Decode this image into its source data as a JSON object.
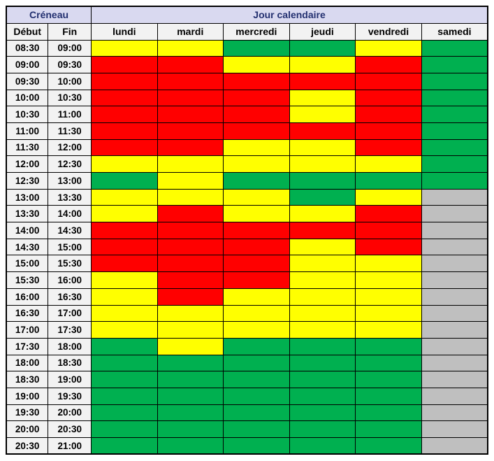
{
  "header": {
    "creneau": "Créneau",
    "jour": "Jour calendaire",
    "debut": "Début",
    "fin": "Fin",
    "days": [
      "lundi",
      "mardi",
      "mercredi",
      "jeudi",
      "vendredi",
      "samedi"
    ]
  },
  "chart_data": {
    "type": "heatmap",
    "columns": [
      "lundi",
      "mardi",
      "mercredi",
      "jeudi",
      "vendredi",
      "samedi"
    ],
    "row_header_labels": [
      "Début",
      "Fin"
    ],
    "corner_label": "Créneau",
    "column_group_label": "Jour calendaire",
    "palette": {
      "R": "#FF0000",
      "Y": "#FFFF00",
      "G": "#00B050",
      "X": "#BFBFBF"
    },
    "palette_names": {
      "R": "red",
      "Y": "yellow",
      "G": "green",
      "X": "gray"
    },
    "rows": [
      {
        "debut": "08:30",
        "fin": "09:00",
        "cells": [
          "Y",
          "Y",
          "G",
          "G",
          "Y",
          "G"
        ]
      },
      {
        "debut": "09:00",
        "fin": "09:30",
        "cells": [
          "R",
          "R",
          "Y",
          "Y",
          "R",
          "G"
        ]
      },
      {
        "debut": "09:30",
        "fin": "10:00",
        "cells": [
          "R",
          "R",
          "R",
          "R",
          "R",
          "G"
        ]
      },
      {
        "debut": "10:00",
        "fin": "10:30",
        "cells": [
          "R",
          "R",
          "R",
          "Y",
          "R",
          "G"
        ]
      },
      {
        "debut": "10:30",
        "fin": "11:00",
        "cells": [
          "R",
          "R",
          "R",
          "Y",
          "R",
          "G"
        ]
      },
      {
        "debut": "11:00",
        "fin": "11:30",
        "cells": [
          "R",
          "R",
          "R",
          "R",
          "R",
          "G"
        ]
      },
      {
        "debut": "11:30",
        "fin": "12:00",
        "cells": [
          "R",
          "R",
          "Y",
          "Y",
          "R",
          "G"
        ]
      },
      {
        "debut": "12:00",
        "fin": "12:30",
        "cells": [
          "Y",
          "Y",
          "Y",
          "Y",
          "Y",
          "G"
        ]
      },
      {
        "debut": "12:30",
        "fin": "13:00",
        "cells": [
          "G",
          "Y",
          "G",
          "G",
          "G",
          "G"
        ]
      },
      {
        "debut": "13:00",
        "fin": "13:30",
        "cells": [
          "Y",
          "Y",
          "Y",
          "G",
          "Y",
          "X"
        ]
      },
      {
        "debut": "13:30",
        "fin": "14:00",
        "cells": [
          "Y",
          "R",
          "Y",
          "Y",
          "R",
          "X"
        ]
      },
      {
        "debut": "14:00",
        "fin": "14:30",
        "cells": [
          "R",
          "R",
          "R",
          "R",
          "R",
          "X"
        ]
      },
      {
        "debut": "14:30",
        "fin": "15:00",
        "cells": [
          "R",
          "R",
          "R",
          "Y",
          "R",
          "X"
        ]
      },
      {
        "debut": "15:00",
        "fin": "15:30",
        "cells": [
          "R",
          "R",
          "R",
          "Y",
          "Y",
          "X"
        ]
      },
      {
        "debut": "15:30",
        "fin": "16:00",
        "cells": [
          "Y",
          "R",
          "R",
          "Y",
          "Y",
          "X"
        ]
      },
      {
        "debut": "16:00",
        "fin": "16:30",
        "cells": [
          "Y",
          "R",
          "Y",
          "Y",
          "Y",
          "X"
        ]
      },
      {
        "debut": "16:30",
        "fin": "17:00",
        "cells": [
          "Y",
          "Y",
          "Y",
          "Y",
          "Y",
          "X"
        ]
      },
      {
        "debut": "17:00",
        "fin": "17:30",
        "cells": [
          "Y",
          "Y",
          "Y",
          "Y",
          "Y",
          "X"
        ]
      },
      {
        "debut": "17:30",
        "fin": "18:00",
        "cells": [
          "G",
          "Y",
          "G",
          "G",
          "G",
          "X"
        ]
      },
      {
        "debut": "18:00",
        "fin": "18:30",
        "cells": [
          "G",
          "G",
          "G",
          "G",
          "G",
          "X"
        ]
      },
      {
        "debut": "18:30",
        "fin": "19:00",
        "cells": [
          "G",
          "G",
          "G",
          "G",
          "G",
          "X"
        ]
      },
      {
        "debut": "19:00",
        "fin": "19:30",
        "cells": [
          "G",
          "G",
          "G",
          "G",
          "G",
          "X"
        ]
      },
      {
        "debut": "19:30",
        "fin": "20:00",
        "cells": [
          "G",
          "G",
          "G",
          "G",
          "G",
          "X"
        ]
      },
      {
        "debut": "20:00",
        "fin": "20:30",
        "cells": [
          "G",
          "G",
          "G",
          "G",
          "G",
          "X"
        ]
      },
      {
        "debut": "20:30",
        "fin": "21:00",
        "cells": [
          "G",
          "G",
          "G",
          "G",
          "G",
          "X"
        ]
      }
    ]
  }
}
